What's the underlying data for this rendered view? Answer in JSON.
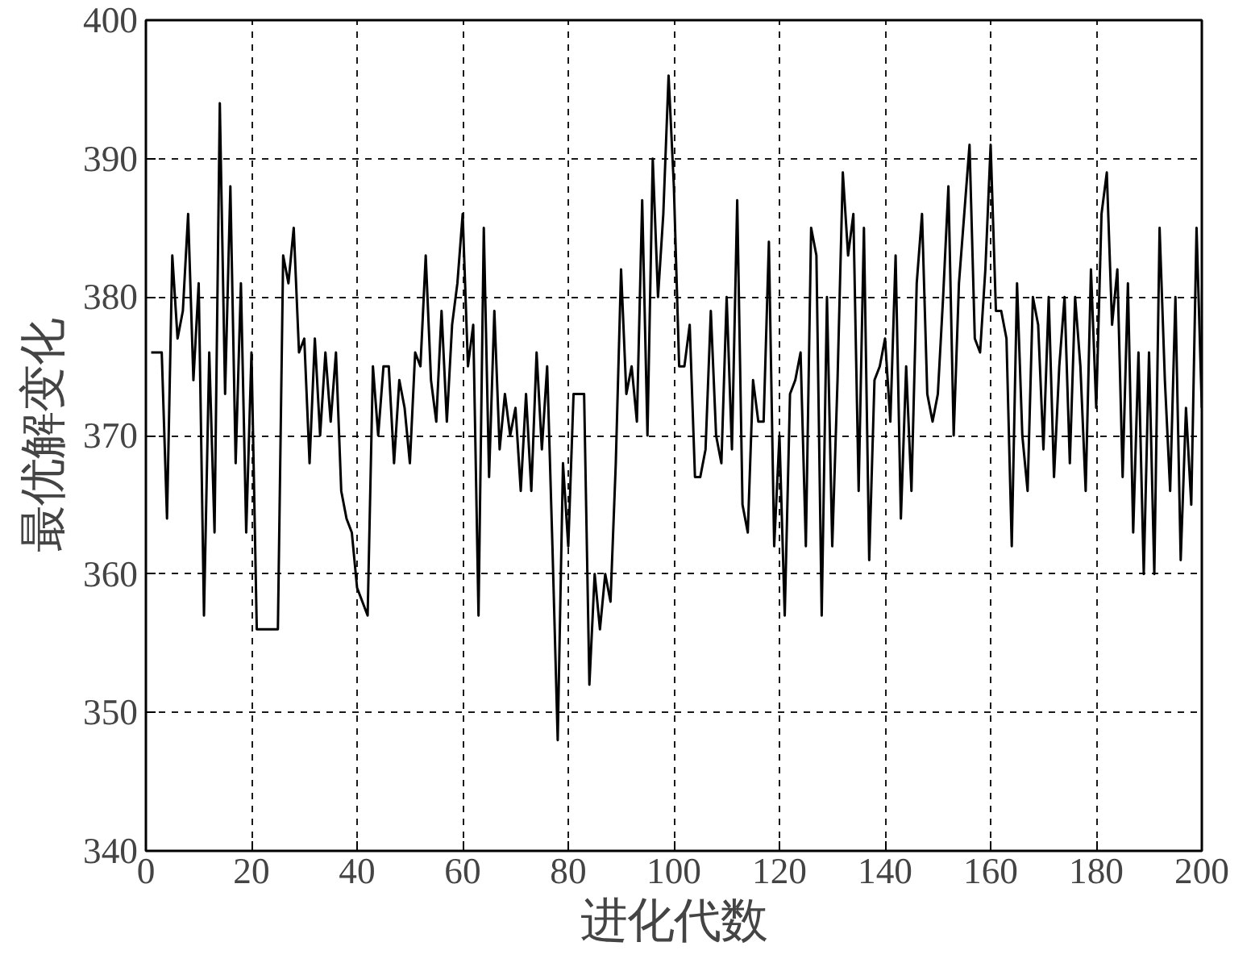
{
  "chart_data": {
    "type": "line",
    "xlabel": "进化代数",
    "ylabel": "最优解变化",
    "xlim": [
      0,
      200
    ],
    "ylim": [
      340,
      400
    ],
    "xticks": [
      0,
      20,
      40,
      60,
      80,
      100,
      120,
      140,
      160,
      180,
      200
    ],
    "yticks": [
      340,
      350,
      360,
      370,
      380,
      390,
      400
    ],
    "grid": true,
    "marker": "none",
    "line_style": "solid",
    "series": [
      {
        "color": "#000000",
        "x": [
          1,
          3,
          4,
          5,
          6,
          7,
          8,
          9,
          10,
          11,
          12,
          13,
          14,
          15,
          16,
          17,
          18,
          19,
          20,
          21,
          25,
          26,
          27,
          28,
          29,
          30,
          31,
          32,
          33,
          34,
          35,
          36,
          37,
          38,
          39,
          40,
          41,
          42,
          43,
          44,
          45,
          46,
          47,
          48,
          49,
          50,
          51,
          52,
          53,
          54,
          55,
          56,
          57,
          58,
          59,
          60,
          61,
          62,
          63,
          64,
          65,
          66,
          67,
          68,
          69,
          70,
          71,
          72,
          73,
          74,
          75,
          76,
          77,
          78,
          79,
          80,
          81,
          82,
          83,
          84,
          85,
          86,
          87,
          88,
          89,
          90,
          91,
          92,
          93,
          94,
          95,
          96,
          97,
          98,
          99,
          100,
          101,
          102,
          103,
          104,
          105,
          106,
          107,
          108,
          109,
          110,
          111,
          112,
          113,
          114,
          115,
          116,
          117,
          118,
          119,
          120,
          121,
          122,
          123,
          124,
          125,
          126,
          127,
          128,
          129,
          130,
          131,
          132,
          133,
          134,
          135,
          136,
          137,
          138,
          139,
          140,
          141,
          142,
          143,
          144,
          145,
          146,
          147,
          148,
          149,
          150,
          151,
          152,
          153,
          154,
          155,
          156,
          157,
          158,
          159,
          160,
          161,
          162,
          163,
          164,
          165,
          166,
          167,
          168,
          169,
          170,
          171,
          172,
          173,
          174,
          175,
          176,
          177,
          178,
          179,
          180,
          181,
          182,
          183,
          184,
          185,
          186,
          187,
          188,
          189,
          190,
          191,
          192,
          193,
          194,
          195,
          196,
          197,
          198,
          199,
          200
        ],
        "values": [
          376,
          376,
          364,
          383,
          377,
          379,
          386,
          374,
          381,
          357,
          376,
          363,
          394,
          373,
          388,
          368,
          381,
          363,
          376,
          356,
          356,
          383,
          381,
          385,
          376,
          377,
          368,
          377,
          370,
          376,
          371,
          376,
          366,
          364,
          363,
          359,
          358,
          357,
          375,
          370,
          375,
          375,
          368,
          374,
          372,
          368,
          376,
          375,
          383,
          374,
          371,
          379,
          371,
          378,
          381,
          386,
          375,
          378,
          357,
          385,
          367,
          379,
          369,
          373,
          370,
          372,
          366,
          373,
          366,
          376,
          369,
          375,
          362,
          348,
          368,
          362,
          373,
          373,
          373,
          352,
          360,
          356,
          360,
          358,
          368,
          382,
          373,
          375,
          371,
          387,
          370,
          390,
          380,
          386,
          396,
          388,
          375,
          375,
          378,
          367,
          367,
          369,
          379,
          370,
          368,
          380,
          369,
          387,
          365,
          363,
          374,
          371,
          371,
          384,
          362,
          370,
          357,
          373,
          374,
          376,
          362,
          385,
          383,
          357,
          380,
          362,
          374,
          389,
          383,
          386,
          366,
          385,
          361,
          374,
          375,
          377,
          371,
          383,
          364,
          375,
          366,
          381,
          386,
          373,
          371,
          373,
          380,
          388,
          370,
          381,
          386,
          391,
          377,
          376,
          382,
          391,
          379,
          379,
          377,
          362,
          381,
          370,
          366,
          380,
          378,
          369,
          380,
          367,
          375,
          380,
          368,
          380,
          375,
          366,
          382,
          372,
          386,
          389,
          378,
          382,
          367,
          381,
          363,
          376,
          360,
          376,
          360,
          385,
          374,
          366,
          380,
          361,
          372,
          365,
          385,
          372
        ]
      }
    ]
  }
}
